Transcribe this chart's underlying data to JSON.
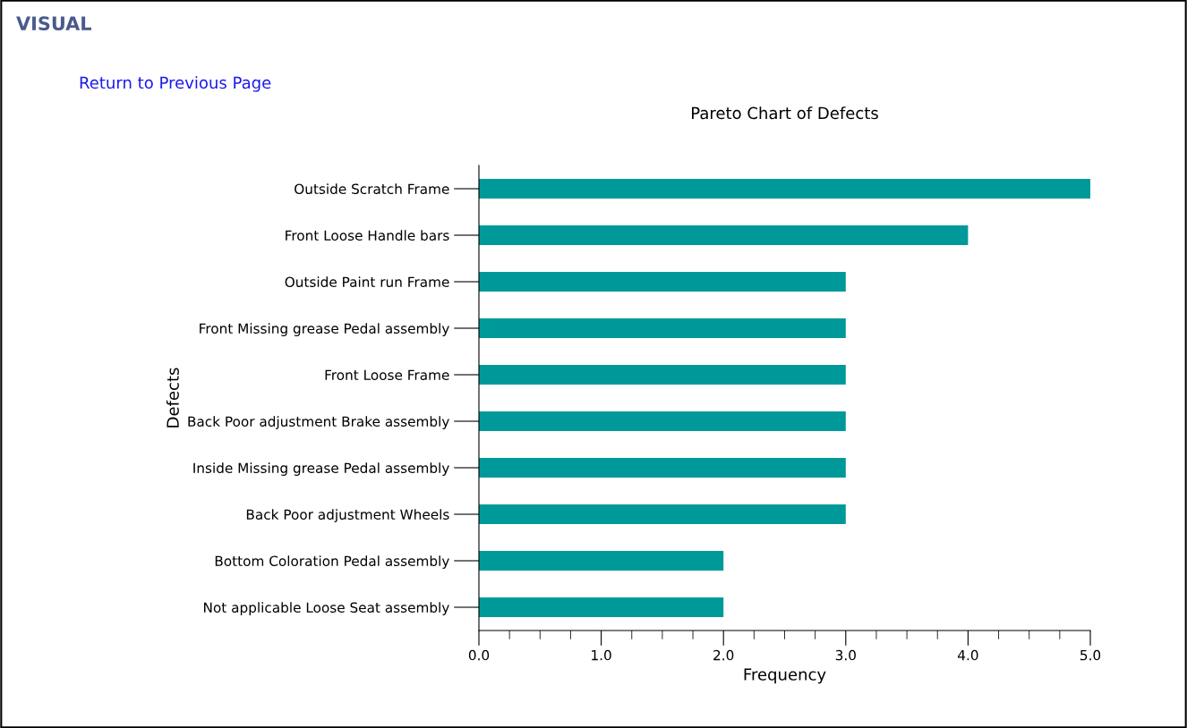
{
  "chart_data": {
    "type": "bar",
    "orientation": "horizontal",
    "title": "Pareto Chart of Defects",
    "xlabel": "Frequency",
    "ylabel": "Defects",
    "categories": [
      "Outside Scratch Frame",
      "Front Loose Handle bars",
      "Outside Paint run Frame",
      "Front Missing grease Pedal assembly",
      "Front Loose Frame",
      "Back Poor adjustment Brake assembly",
      "Inside Missing grease Pedal assembly",
      "Back Poor adjustment Wheels",
      "Bottom Coloration Pedal assembly",
      "Not applicable Loose Seat assembly"
    ],
    "values": [
      5,
      4,
      3,
      3,
      3,
      3,
      3,
      3,
      2,
      2
    ],
    "color": "#009999",
    "xlim": [
      0,
      5
    ],
    "xticks": [
      {
        "value": 0,
        "label": "0.0"
      },
      {
        "value": 0.25,
        "label": null
      },
      {
        "value": 0.5,
        "label": null
      },
      {
        "value": 0.75,
        "label": null
      },
      {
        "value": 1,
        "label": "1.0"
      },
      {
        "value": 1.25,
        "label": null
      },
      {
        "value": 1.5,
        "label": null
      },
      {
        "value": 1.75,
        "label": null
      },
      {
        "value": 2,
        "label": "2.0"
      },
      {
        "value": 2.25,
        "label": null
      },
      {
        "value": 2.5,
        "label": null
      },
      {
        "value": 2.75,
        "label": null
      },
      {
        "value": 3,
        "label": "3.0"
      },
      {
        "value": 3.25,
        "label": null
      },
      {
        "value": 3.5,
        "label": null
      },
      {
        "value": 3.75,
        "label": null
      },
      {
        "value": 4,
        "label": "4.0"
      },
      {
        "value": 4.25,
        "label": null
      },
      {
        "value": 4.5,
        "label": null
      },
      {
        "value": 4.75,
        "label": null
      },
      {
        "value": 5,
        "label": "5.0"
      }
    ],
    "grid": false,
    "legend": false,
    "annotations": [
      "VISUAL",
      "Return to Previous Page"
    ]
  }
}
